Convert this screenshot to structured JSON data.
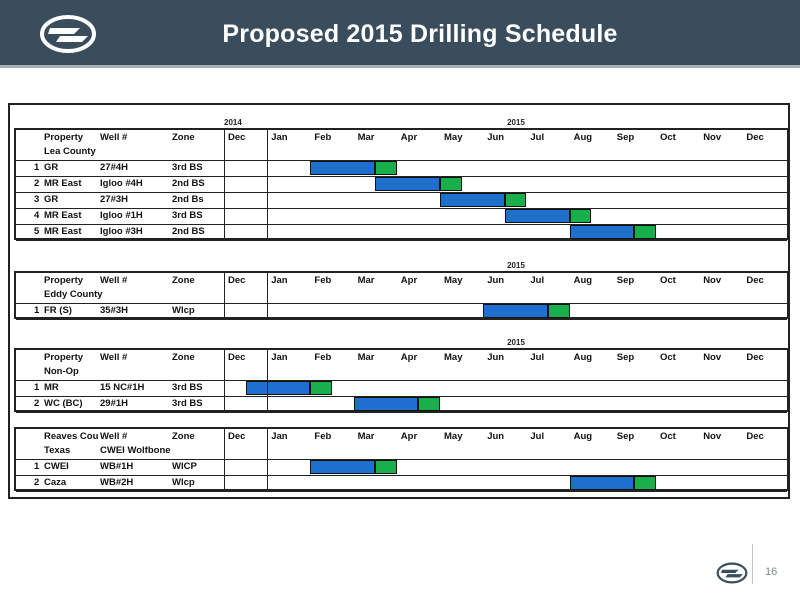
{
  "header": {
    "title": "Proposed 2015 Drilling Schedule"
  },
  "footer": {
    "page_number": "16"
  },
  "colors": {
    "header_bg": "#3a4d5c",
    "drilling_bar": "#1f6fcf",
    "completion_bar": "#18b04c"
  },
  "columns": [
    "Property",
    "Well #",
    "Zone",
    "Dec",
    "Jan",
    "Feb",
    "Mar",
    "Apr",
    "May",
    "Jun",
    "Jul",
    "Aug",
    "Sep",
    "Oct",
    "Nov",
    "Dec"
  ],
  "sections": [
    {
      "year_labels": {
        "left": "2014",
        "right": "2015"
      },
      "headers": {
        "property": "Property",
        "well": "Well #",
        "zone": "Zone"
      },
      "group": "Lea County",
      "rows": [
        {
          "num": "1",
          "property": "GR",
          "well": "27#4H",
          "zone": "3rd BS",
          "drill_start": 2.0,
          "drill_end": 3.5,
          "comp_end": 4.0
        },
        {
          "num": "2",
          "property": "MR East",
          "well": "Igloo #4H",
          "zone": "2nd BS",
          "drill_start": 3.5,
          "drill_end": 5.0,
          "comp_end": 5.5
        },
        {
          "num": "3",
          "property": "GR",
          "well": "27#3H",
          "zone": "2nd Bs",
          "drill_start": 5.0,
          "drill_end": 6.5,
          "comp_end": 7.0
        },
        {
          "num": "4",
          "property": "MR East",
          "well": "Igloo #1H",
          "zone": "3rd  BS",
          "drill_start": 6.5,
          "drill_end": 8.0,
          "comp_end": 8.5
        },
        {
          "num": "5",
          "property": "MR East",
          "well": "Igloo #3H",
          "zone": "2nd BS",
          "drill_start": 8.0,
          "drill_end": 9.5,
          "comp_end": 10.0
        }
      ]
    },
    {
      "year_labels": {
        "left": "",
        "right": "2015"
      },
      "headers": {
        "property": "Property",
        "well": "Well #",
        "zone": "Zone"
      },
      "group": "Eddy County",
      "rows": [
        {
          "num": "1",
          "property": "FR (S)",
          "well": "35#3H",
          "zone": "Wlcp",
          "drill_start": 6.0,
          "drill_end": 7.5,
          "comp_end": 8.0
        }
      ]
    },
    {
      "year_labels": {
        "left": "",
        "right": "2015"
      },
      "headers": {
        "property": "Property",
        "well": "Well #",
        "zone": "Zone"
      },
      "group": "Non-Op",
      "rows": [
        {
          "num": "1",
          "property": "MR",
          "well": "15 NC#1H",
          "zone": "3rd BS",
          "drill_start": 0.5,
          "drill_end": 2.0,
          "comp_end": 2.5
        },
        {
          "num": "2",
          "property": "WC (BC)",
          "well": "29#1H",
          "zone": "3rd BS",
          "drill_start": 3.0,
          "drill_end": 4.5,
          "comp_end": 5.0
        }
      ]
    },
    {
      "year_labels": {
        "left": "",
        "right": ""
      },
      "headers": {
        "property": "Reaves Cou",
        "well": "Well #",
        "zone": "Zone"
      },
      "group": "Texas",
      "group_extra": "CWEI Wolfbone",
      "rows": [
        {
          "num": "1",
          "property": "CWEI",
          "well": "WB#1H",
          "zone": "WlCP",
          "drill_start": 2.0,
          "drill_end": 3.5,
          "comp_end": 4.0
        },
        {
          "num": "2",
          "property": "Caza",
          "well": "WB#2H",
          "zone": "Wlcp",
          "drill_start": 8.0,
          "drill_end": 9.5,
          "comp_end": 10.0
        }
      ]
    }
  ]
}
